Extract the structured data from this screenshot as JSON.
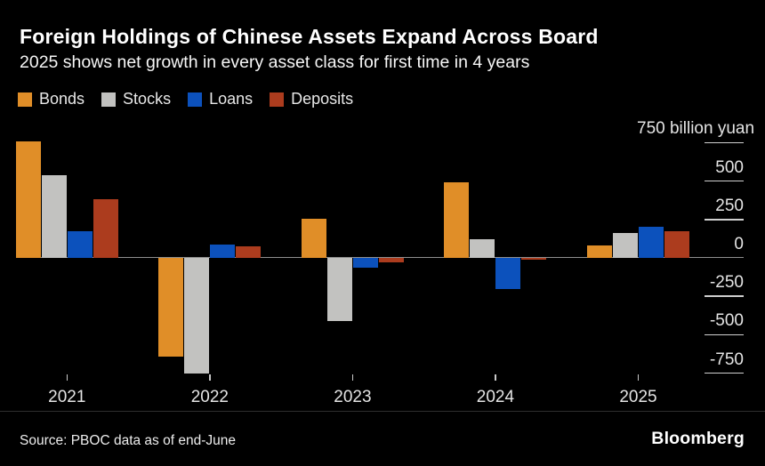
{
  "header": {
    "title": "Foreign Holdings of Chinese Assets Expand Across Board",
    "subtitle": "2025 shows net growth in every asset class for first time in 4 years"
  },
  "chart_data": {
    "type": "bar",
    "title": "Foreign Holdings of Chinese Assets Expand Across Board",
    "subtitle": "2025 shows net growth in every asset class for first time in 4 years",
    "unit": "billion yuan",
    "categories": [
      "2021",
      "2022",
      "2023",
      "2024",
      "2025"
    ],
    "series": [
      {
        "name": "Bonds",
        "color": "#e08e28",
        "values": [
          760,
          -640,
          255,
          490,
          80
        ]
      },
      {
        "name": "Stocks",
        "color": "#c2c2c0",
        "values": [
          540,
          -755,
          -410,
          120,
          160
        ]
      },
      {
        "name": "Loans",
        "color": "#0c51bc",
        "values": [
          175,
          85,
          -65,
          -205,
          205
        ]
      },
      {
        "name": "Deposits",
        "color": "#ac3c1e",
        "values": [
          380,
          75,
          -30,
          -10,
          175
        ]
      }
    ],
    "y_ticks": [
      750,
      500,
      250,
      0,
      -250,
      -500,
      -750
    ],
    "y_tick_labels": [
      "750 billion yuan",
      "500",
      "250",
      "0",
      "-250",
      "-500",
      "-750"
    ],
    "ylim": [
      -800,
      800
    ],
    "grid": false,
    "legend_position": "top"
  },
  "footer": {
    "source": "Source: PBOC data as of end-June",
    "brand": "Bloomberg"
  }
}
